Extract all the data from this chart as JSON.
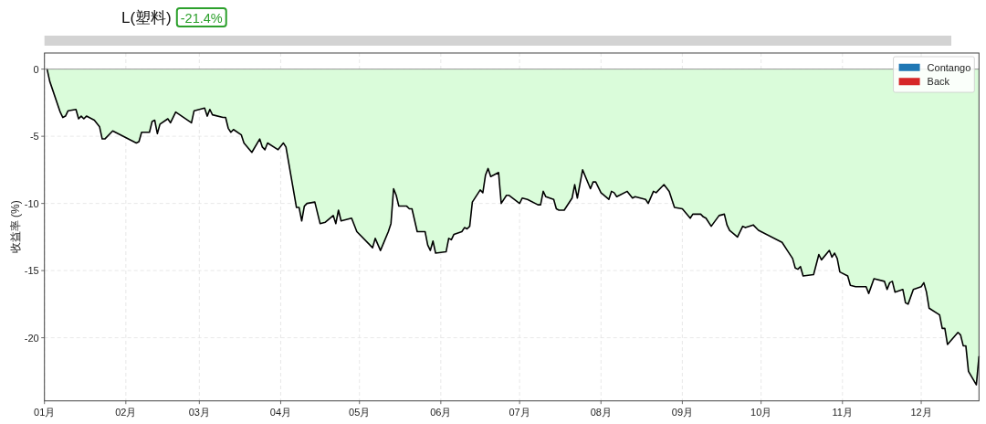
{
  "chart_data": {
    "type": "area",
    "title": "L(塑料)",
    "subtitle": "-21.4%",
    "ylabel": "收益率 (%)",
    "x": [
      "--01-02",
      "--01-03",
      "--01-07",
      "--01-08",
      "--01-09",
      "--01-10",
      "--01-13",
      "--01-14",
      "--01-15",
      "--01-16",
      "--01-17",
      "--01-20",
      "--01-22",
      "--01-23",
      "--01-24",
      "--01-27",
      "--02-05",
      "--02-06",
      "--02-07",
      "--02-10",
      "--02-11",
      "--02-12",
      "--02-13",
      "--02-14",
      "--02-17",
      "--02-18",
      "--02-20",
      "--02-26",
      "--02-27",
      "--03-03",
      "--03-04",
      "--03-05",
      "--03-06",
      "--03-10",
      "--03-11",
      "--03-12",
      "--03-13",
      "--03-14",
      "--03-17",
      "--03-18",
      "--03-21",
      "--03-24",
      "--03-25",
      "--03-26",
      "--03-27",
      "--03-31",
      "--04-02",
      "--04-03",
      "--04-07",
      "--04-08",
      "--04-09",
      "--04-10",
      "--04-11",
      "--04-14",
      "--04-16",
      "--04-18",
      "--04-21",
      "--04-22",
      "--04-23",
      "--04-24",
      "--04-28",
      "--04-30",
      "--05-06",
      "--05-07",
      "--05-09",
      "--05-12",
      "--05-13",
      "--05-14",
      "--05-15",
      "--05-16",
      "--05-19",
      "--05-20",
      "--05-21",
      "--05-23",
      "--05-26",
      "--05-27",
      "--05-28",
      "--05-29",
      "--05-30",
      "--06-03",
      "--06-04",
      "--06-05",
      "--06-06",
      "--06-09",
      "--06-10",
      "--06-11",
      "--06-12",
      "--06-13",
      "--06-16",
      "--06-17",
      "--06-18",
      "--06-19",
      "--06-20",
      "--06-23",
      "--06-24",
      "--06-26",
      "--06-27",
      "--07-01",
      "--07-02",
      "--07-04",
      "--07-08",
      "--07-09",
      "--07-10",
      "--07-11",
      "--07-14",
      "--07-15",
      "--07-16",
      "--07-18",
      "--07-21",
      "--07-22",
      "--07-23",
      "--07-25",
      "--07-28",
      "--07-29",
      "--07-30",
      "--08-01",
      "--08-04",
      "--08-05",
      "--08-06",
      "--08-07",
      "--08-08",
      "--08-11",
      "--08-13",
      "--08-14",
      "--08-18",
      "--08-19",
      "--08-21",
      "--08-22",
      "--08-25",
      "--08-27",
      "--08-29",
      "--09-01",
      "--09-04",
      "--09-05",
      "--09-08",
      "--09-09",
      "--09-10",
      "--09-12",
      "--09-15",
      "--09-17",
      "--09-18",
      "--09-19",
      "--09-22",
      "--09-24",
      "--09-25",
      "--09-28",
      "--09-30",
      "--10-09",
      "--10-11",
      "--10-13",
      "--10-14",
      "--10-15",
      "--10-16",
      "--10-17",
      "--10-21",
      "--10-23",
      "--10-24",
      "--10-27",
      "--10-28",
      "--10-29",
      "--10-30",
      "--10-31",
      "--11-03",
      "--11-04",
      "--11-06",
      "--11-10",
      "--11-11",
      "--11-13",
      "--11-17",
      "--11-18",
      "--11-19",
      "--11-20",
      "--11-21",
      "--11-24",
      "--11-25",
      "--11-26",
      "--11-28",
      "--12-01",
      "--12-02",
      "--12-03",
      "--12-04",
      "--12-08",
      "--12-09",
      "--12-10",
      "--12-11",
      "--12-15",
      "--12-16",
      "--12-17",
      "--12-18",
      "--12-19",
      "--12-22",
      "--12-23"
    ],
    "xlim": [
      "--01-01",
      "--12-23"
    ],
    "xticks": [
      {
        "value": "--01-01",
        "label": "01月"
      },
      {
        "value": "--02-01",
        "label": "02月"
      },
      {
        "value": "--03-01",
        "label": "03月"
      },
      {
        "value": "--04-01",
        "label": "04月"
      },
      {
        "value": "--05-01",
        "label": "05月"
      },
      {
        "value": "--06-01",
        "label": "06月"
      },
      {
        "value": "--07-01",
        "label": "07月"
      },
      {
        "value": "--08-01",
        "label": "08月"
      },
      {
        "value": "--09-01",
        "label": "09月"
      },
      {
        "value": "--10-01",
        "label": "10月"
      },
      {
        "value": "--11-01",
        "label": "11月"
      },
      {
        "value": "--12-01",
        "label": "12月"
      }
    ],
    "ylim": [
      -24.7,
      1.2
    ],
    "yticks": [
      0,
      -5,
      -10,
      -15,
      -20
    ],
    "grid": true,
    "legend": "top right",
    "ref_lines": [
      {
        "axis": "y",
        "value": 0,
        "color": "#999999"
      }
    ],
    "series": [
      {
        "color": "#dafcda",
        "values": [
          0,
          -0.9,
          -3.2,
          -3.6,
          -3.5,
          -3.1,
          -3.0,
          -3.7,
          -3.5,
          -3.7,
          -3.5,
          -3.8,
          -4.3,
          -5.2,
          -5.2,
          -4.6,
          -5.5,
          -5.4,
          -4.7,
          -4.7,
          -3.9,
          -3.8,
          -4.8,
          -4.1,
          -3.7,
          -4.0,
          -3.2,
          -4.0,
          -3.1,
          -2.9,
          -3.5,
          -3.0,
          -3.4,
          -3.6,
          -3.6,
          -4.4,
          -4.7,
          -4.5,
          -4.9,
          -5.5,
          -6.2,
          -5.2,
          -5.8,
          -6.0,
          -5.5,
          -6.0,
          -5.5,
          -5.8,
          -10.3,
          -10.3,
          -11.3,
          -10.2,
          -10.0,
          -9.9,
          -11.5,
          -11.4,
          -10.9,
          -11.5,
          -10.5,
          -11.3,
          -11.1,
          -12.1,
          -13.3,
          -12.6,
          -13.5,
          -12.1,
          -11.5,
          -8.9,
          -9.4,
          -10.2,
          -10.2,
          -10.4,
          -10.4,
          -12.1,
          -12.1,
          -13.1,
          -13.5,
          -12.8,
          -13.7,
          -13.6,
          -12.6,
          -12.7,
          -12.3,
          -12.1,
          -11.8,
          -11.9,
          -11.7,
          -9.9,
          -9.0,
          -9.2,
          -7.9,
          -7.4,
          -8.0,
          -7.7,
          -10.0,
          -9.4,
          -9.4,
          -10.0,
          -9.6,
          -9.7,
          -10.1,
          -10.1,
          -9.1,
          -9.5,
          -9.7,
          -10.4,
          -10.5,
          -10.5,
          -9.6,
          -8.6,
          -9.6,
          -7.5,
          -8.9,
          -8.4,
          -8.4,
          -9.2,
          -9.7,
          -9.1,
          -9.2,
          -9.5,
          -9.4,
          -9.1,
          -9.6,
          -9.5,
          -9.7,
          -10.0,
          -9.1,
          -9.2,
          -8.6,
          -9.1,
          -10.3,
          -10.4,
          -11.1,
          -10.8,
          -10.8,
          -11.0,
          -11.1,
          -11.7,
          -10.9,
          -10.8,
          -11.6,
          -12.0,
          -12.5,
          -11.7,
          -11.8,
          -11.6,
          -12.0,
          -12.9,
          -13.5,
          -14.1,
          -14.8,
          -14.9,
          -14.7,
          -15.4,
          -15.3,
          -13.8,
          -14.2,
          -13.5,
          -14.0,
          -13.7,
          -14.1,
          -15.1,
          -15.4,
          -16.1,
          -16.2,
          -16.2,
          -16.7,
          -15.6,
          -15.8,
          -16.4,
          -15.9,
          -15.8,
          -16.6,
          -16.4,
          -17.4,
          -17.5,
          -16.4,
          -16.2,
          -15.9,
          -16.6,
          -17.8,
          -18.3,
          -19.3,
          -19.3,
          -20.5,
          -19.6,
          -19.8,
          -20.6,
          -20.6,
          -22.5,
          -23.5,
          -21.4
        ]
      },
      {
        "name": "Contango",
        "color": "#1f77b4",
        "values": [
          null,
          null,
          null,
          null,
          null,
          null,
          null,
          null,
          null,
          null,
          null,
          null,
          null,
          null,
          null,
          null,
          null,
          null,
          null,
          null,
          null,
          null,
          null,
          null,
          null,
          null,
          null,
          null,
          null,
          null,
          null,
          null,
          null,
          null,
          null,
          null,
          null,
          null,
          null,
          null,
          null,
          null,
          null,
          null,
          null,
          null,
          null,
          null,
          null,
          null,
          null,
          null,
          null,
          null,
          null,
          null,
          null,
          null,
          null,
          null,
          null,
          null,
          null,
          null,
          null,
          null,
          null,
          null,
          null,
          null,
          null,
          null,
          null,
          null,
          null,
          null,
          null,
          null,
          null,
          null,
          null,
          null,
          null,
          null,
          null,
          null,
          null,
          null,
          null,
          null,
          null,
          null,
          null,
          null,
          null,
          null,
          null,
          null,
          null,
          null,
          null,
          null,
          null,
          null,
          null,
          null,
          null,
          null,
          null,
          null,
          null,
          null,
          null,
          null,
          null,
          null,
          null,
          null,
          null,
          null,
          null,
          null,
          null,
          null,
          null,
          null,
          null,
          null,
          null,
          null,
          null,
          null,
          null,
          null,
          null,
          null,
          null,
          null,
          null,
          null,
          null,
          null,
          null,
          null,
          null,
          null,
          null,
          null,
          null,
          null,
          null,
          null,
          null,
          null,
          null,
          null,
          null,
          null,
          null,
          null,
          null,
          null,
          null,
          null,
          null,
          null,
          null,
          null,
          null,
          null,
          null,
          null,
          null,
          null,
          null,
          null,
          null,
          null,
          null,
          null,
          null,
          null,
          null,
          null,
          null,
          null,
          null,
          null,
          null,
          null,
          null,
          null
        ]
      },
      {
        "name": "Back",
        "color": "#d62728",
        "values": [
          null,
          null,
          null,
          null,
          null,
          null,
          null,
          null,
          null,
          null,
          null,
          null,
          null,
          null,
          null,
          null,
          null,
          null,
          null,
          null,
          null,
          null,
          null,
          null,
          null,
          null,
          null,
          null,
          null,
          null,
          null,
          null,
          null,
          null,
          null,
          null,
          null,
          null,
          null,
          null,
          null,
          null,
          null,
          null,
          null,
          null,
          null,
          null,
          null,
          null,
          null,
          null,
          null,
          null,
          null,
          null,
          null,
          null,
          null,
          null,
          null,
          null,
          null,
          null,
          null,
          null,
          null,
          null,
          null,
          null,
          null,
          null,
          null,
          null,
          null,
          null,
          null,
          null,
          null,
          null,
          null,
          null,
          null,
          null,
          null,
          null,
          null,
          null,
          null,
          null,
          null,
          null,
          null,
          null,
          null,
          null,
          null,
          null,
          null,
          null,
          null,
          null,
          null,
          null,
          null,
          null,
          null,
          null,
          null,
          null,
          null,
          null,
          null,
          null,
          null,
          null,
          null,
          null,
          null,
          null,
          null,
          null,
          null,
          null,
          null,
          null,
          null,
          null,
          null,
          null,
          null,
          null,
          null,
          null,
          null,
          null,
          null,
          null,
          null,
          null,
          null,
          null,
          null,
          null,
          null,
          null,
          null,
          null,
          null,
          null,
          null,
          null,
          null,
          null,
          null,
          null,
          null,
          null,
          null,
          null,
          null,
          null,
          null,
          null,
          null,
          null,
          null,
          null,
          null,
          null,
          null,
          null,
          null,
          null,
          null,
          null,
          null,
          null,
          null,
          null,
          null,
          null,
          null,
          null,
          null,
          null,
          null,
          null,
          null,
          null,
          null,
          null
        ]
      }
    ]
  }
}
